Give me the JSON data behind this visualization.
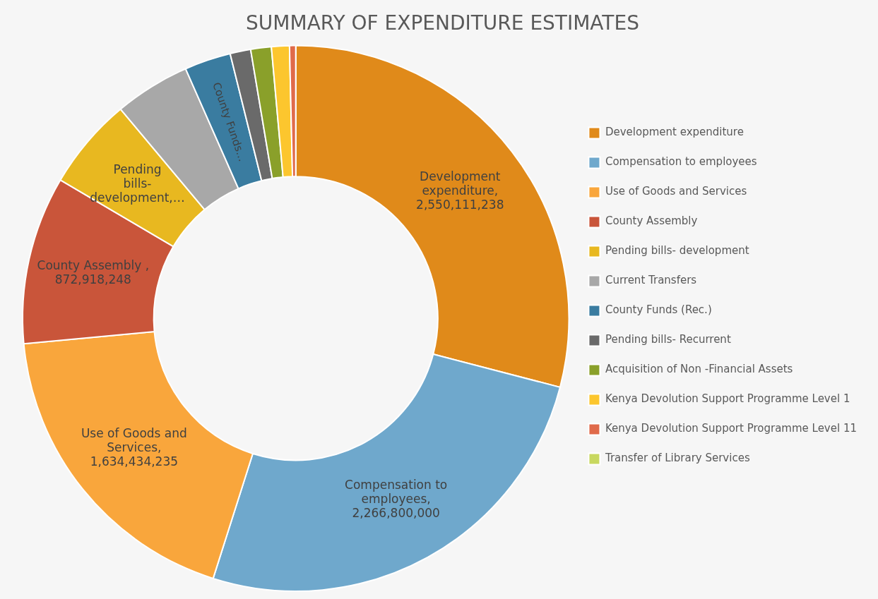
{
  "chart_data": {
    "type": "donut",
    "title": "SUMMARY OF EXPENDITURE ESTIMATES",
    "categories": [
      "Development expenditure",
      "Compensation to employees",
      "Use of Goods and Services",
      "County Assembly",
      "Pending bills- development",
      "Current Transfers",
      "County Funds (Rec.)",
      "Pending bills- Recurrent",
      "Acquisition of Non -Financial Assets",
      "Kenya Devolution Support Programme Level 1",
      "Kenya Devolution Support Programme Level 11",
      "Transfer of Library Services"
    ],
    "values": [
      2550111238,
      2266800000,
      1634434235,
      872918248,
      478000000,
      393000000,
      241000000,
      107000000,
      107000000,
      93000000,
      32000000,
      0
    ],
    "colors": [
      "#e08a1a",
      "#6fa8cc",
      "#f9a63c",
      "#c9553a",
      "#e8b820",
      "#a8a8a8",
      "#3a7ca0",
      "#6a6a6a",
      "#8aa02a",
      "#fcc62e",
      "#e06a4a",
      "#c8d860"
    ],
    "value_labels": [
      "Development expenditure, 2,550,111,238",
      "Compensation to employees, 2,266,800,000",
      "Use of Goods and Services, 1,634,434,235",
      "County Assembly , 872,918,248",
      "Pending bills- development,…",
      null,
      "County Funds…",
      null,
      null,
      null,
      null,
      null
    ],
    "legend": "right"
  }
}
